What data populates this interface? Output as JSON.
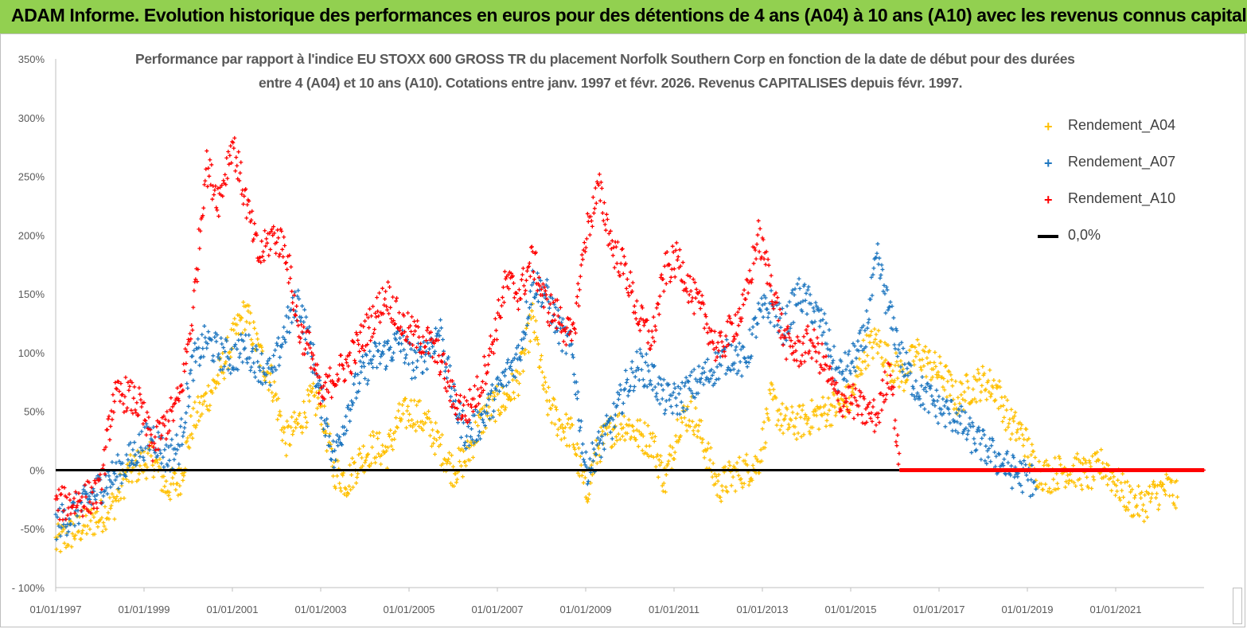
{
  "banner": {
    "title": "ADAM Informe. Evolution historique des performances en euros pour des détentions de 4 ans (A04) à 10 ans (A10) avec les revenus connus capitalisés",
    "color": "#92d050"
  },
  "chart_data": {
    "type": "scatter",
    "title_line1": "Performance par rapport à l'indice EU STOXX 600 GROSS TR  du placement Norfolk Southern Corp en fonction de la date de début pour des durées",
    "title_line2": "entre 4 (A04) et 10 ans (A10).  Cotations entre janv. 1997 et févr. 2026. Revenus CAPITALISES depuis févr. 1997.",
    "xlabel": "",
    "ylabel": "",
    "xlim": [
      1997.0,
      2023.0
    ],
    "ylim": [
      -100,
      350
    ],
    "y_ticks": [
      {
        "value": -100,
        "label": "- 100%"
      },
      {
        "value": -50,
        "label": "-50%"
      },
      {
        "value": 0,
        "label": "0%"
      },
      {
        "value": 50,
        "label": "50%"
      },
      {
        "value": 100,
        "label": "100%"
      },
      {
        "value": 150,
        "label": "150%"
      },
      {
        "value": 200,
        "label": "200%"
      },
      {
        "value": 250,
        "label": "250%"
      },
      {
        "value": 300,
        "label": "300%"
      },
      {
        "value": 350,
        "label": "350%"
      }
    ],
    "x_ticks": [
      {
        "value": 1997.0,
        "label": "01/01/1997"
      },
      {
        "value": 1999.0,
        "label": "01/01/1999"
      },
      {
        "value": 2001.0,
        "label": "01/01/2001"
      },
      {
        "value": 2003.0,
        "label": "01/01/2003"
      },
      {
        "value": 2005.0,
        "label": "01/01/2005"
      },
      {
        "value": 2007.0,
        "label": "01/01/2007"
      },
      {
        "value": 2009.0,
        "label": "01/01/2009"
      },
      {
        "value": 2011.0,
        "label": "01/01/2011"
      },
      {
        "value": 2013.0,
        "label": "01/01/2013"
      },
      {
        "value": 2015.0,
        "label": "01/01/2015"
      },
      {
        "value": 2017.0,
        "label": "01/01/2017"
      },
      {
        "value": 2019.0,
        "label": "01/01/2019"
      },
      {
        "value": 2021.0,
        "label": "01/01/2021"
      }
    ],
    "legend_position": "top-right",
    "series": [
      {
        "name": "Rendement_A04",
        "color": "#ffc000",
        "x": [
          1997.0,
          1997.3,
          1997.6,
          1998.0,
          1998.3,
          1998.6,
          1998.9,
          1999.2,
          1999.5,
          1999.8,
          2000.1,
          2000.4,
          2000.7,
          2001.0,
          2001.3,
          2001.6,
          2001.9,
          2002.2,
          2002.5,
          2002.8,
          2003.0,
          2003.3,
          2003.6,
          2003.9,
          2004.2,
          2004.5,
          2004.8,
          2005.1,
          2005.4,
          2005.7,
          2006.0,
          2006.3,
          2006.6,
          2006.9,
          2007.2,
          2007.5,
          2007.8,
          2008.1,
          2008.4,
          2008.7,
          2009.0,
          2009.3,
          2009.6,
          2009.9,
          2010.2,
          2010.5,
          2010.8,
          2011.1,
          2011.4,
          2011.7,
          2012.0,
          2012.3,
          2012.6,
          2012.9,
          2013.2,
          2013.5,
          2013.8,
          2014.1,
          2014.4,
          2014.7,
          2015.0,
          2015.3,
          2015.6,
          2015.9,
          2016.2,
          2016.5,
          2016.8,
          2017.1,
          2017.4,
          2017.7,
          2018.0,
          2018.3,
          2018.6,
          2018.9,
          2019.2,
          2019.5,
          2019.8,
          2020.1,
          2020.4,
          2020.7,
          2021.0,
          2021.3,
          2021.6,
          2021.9,
          2022.2,
          2022.4
        ],
        "y": [
          -62,
          -55,
          -48,
          -40,
          -30,
          -5,
          5,
          10,
          -15,
          -10,
          40,
          60,
          80,
          110,
          135,
          100,
          75,
          25,
          40,
          60,
          55,
          0,
          -10,
          10,
          20,
          15,
          45,
          50,
          40,
          20,
          0,
          10,
          40,
          55,
          60,
          80,
          130,
          60,
          40,
          30,
          -20,
          20,
          35,
          40,
          30,
          25,
          -10,
          40,
          50,
          20,
          -15,
          -5,
          0,
          5,
          60,
          40,
          40,
          45,
          50,
          55,
          60,
          100,
          110,
          90,
          80,
          100,
          90,
          80,
          60,
          70,
          75,
          70,
          40,
          30,
          0,
          -5,
          0,
          0,
          -5,
          5,
          -10,
          -25,
          -30,
          -20,
          -15,
          -25
        ]
      },
      {
        "name": "Rendement_A07",
        "color": "#1f77c0",
        "x": [
          1997.0,
          1997.3,
          1997.6,
          1998.0,
          1998.3,
          1998.6,
          1998.9,
          1999.2,
          1999.5,
          1999.8,
          2000.1,
          2000.4,
          2000.7,
          2001.0,
          2001.3,
          2001.6,
          2001.9,
          2002.2,
          2002.5,
          2002.8,
          2003.0,
          2003.3,
          2003.6,
          2003.9,
          2004.2,
          2004.5,
          2004.8,
          2005.1,
          2005.4,
          2005.7,
          2006.0,
          2006.3,
          2006.6,
          2006.9,
          2007.2,
          2007.5,
          2007.8,
          2008.1,
          2008.4,
          2008.7,
          2009.0,
          2009.3,
          2009.6,
          2009.9,
          2010.2,
          2010.5,
          2010.8,
          2011.1,
          2011.4,
          2011.7,
          2012.0,
          2012.3,
          2012.6,
          2012.9,
          2013.2,
          2013.5,
          2013.8,
          2014.1,
          2014.4,
          2014.7,
          2015.0,
          2015.3,
          2015.6,
          2015.9,
          2016.2,
          2016.5,
          2016.8,
          2017.1,
          2017.4,
          2017.7,
          2018.0,
          2018.3,
          2018.6,
          2018.9,
          2019.2
        ],
        "y": [
          -45,
          -40,
          -30,
          -15,
          -5,
          5,
          20,
          30,
          10,
          20,
          90,
          110,
          100,
          95,
          105,
          90,
          80,
          120,
          145,
          100,
          60,
          10,
          50,
          80,
          95,
          100,
          110,
          90,
          100,
          120,
          60,
          30,
          40,
          60,
          80,
          100,
          160,
          150,
          120,
          100,
          0,
          20,
          40,
          70,
          90,
          80,
          60,
          60,
          70,
          80,
          90,
          100,
          90,
          130,
          140,
          120,
          150,
          140,
          120,
          80,
          90,
          110,
          180,
          130,
          90,
          70,
          60,
          50,
          45,
          30,
          20,
          10,
          0,
          -5,
          -10
        ]
      },
      {
        "name": "Rendement_A10",
        "color": "#ff0000",
        "x": [
          1997.0,
          1997.3,
          1997.6,
          1998.0,
          1998.3,
          1998.6,
          1998.9,
          1999.2,
          1999.5,
          1999.8,
          2000.1,
          2000.4,
          2000.7,
          2001.0,
          2001.3,
          2001.6,
          2001.9,
          2002.2,
          2002.5,
          2002.8,
          2003.0,
          2003.3,
          2003.6,
          2003.9,
          2004.2,
          2004.5,
          2004.8,
          2005.1,
          2005.4,
          2005.7,
          2006.0,
          2006.3,
          2006.6,
          2006.9,
          2007.2,
          2007.5,
          2007.8,
          2008.1,
          2008.4,
          2008.7,
          2009.0,
          2009.3,
          2009.6,
          2009.9,
          2010.2,
          2010.5,
          2010.8,
          2011.1,
          2011.4,
          2011.7,
          2012.0,
          2012.3,
          2012.6,
          2012.9,
          2013.2,
          2013.5,
          2013.8,
          2014.1,
          2014.4,
          2014.7,
          2015.0,
          2015.3,
          2015.6,
          2015.9,
          2016.1,
          2016.6,
          2017.1,
          2017.6,
          2018.1,
          2018.6,
          2019.1,
          2019.6,
          2020.1,
          2020.6,
          2021.1,
          2021.6,
          2022.1,
          2022.6,
          2023.0
        ],
        "y": [
          -30,
          -28,
          -25,
          -20,
          60,
          65,
          55,
          20,
          40,
          60,
          130,
          260,
          230,
          280,
          230,
          180,
          200,
          190,
          120,
          100,
          60,
          80,
          90,
          110,
          130,
          150,
          125,
          115,
          110,
          95,
          60,
          50,
          70,
          110,
          160,
          150,
          180,
          140,
          130,
          110,
          200,
          240,
          190,
          170,
          130,
          110,
          170,
          180,
          150,
          130,
          100,
          120,
          140,
          200,
          160,
          110,
          100,
          110,
          90,
          60,
          60,
          50,
          45,
          90,
          0,
          0,
          0,
          0,
          0,
          0,
          0,
          0,
          0,
          0,
          0,
          0,
          0,
          0,
          0
        ]
      },
      {
        "name": "0,0%",
        "color": "#000000",
        "x": [
          1997.0,
          2016.1
        ],
        "y": [
          0,
          0
        ]
      }
    ]
  }
}
